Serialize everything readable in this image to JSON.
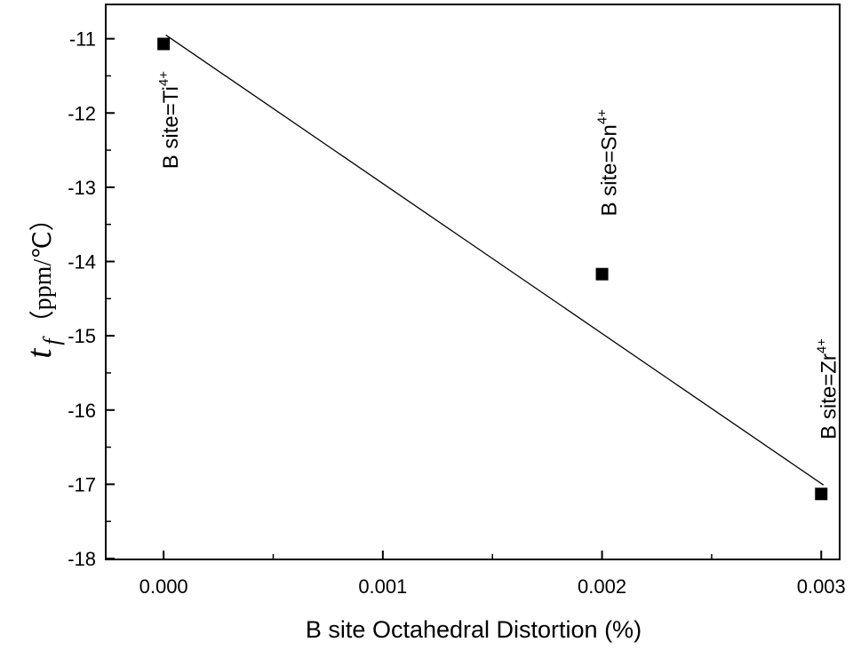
{
  "chart_data": {
    "type": "scatter",
    "xlabel": "B site Octahedral Distortion (%)",
    "ylabel": {
      "symbol": "t",
      "subscript": "f",
      "unit": "（ppm/℃）"
    },
    "xlim": [
      -0.00026,
      0.00308
    ],
    "ylim": [
      -18,
      -10.55
    ],
    "x_ticks": [
      0.0,
      0.001,
      0.002,
      0.003
    ],
    "x_tick_labels": [
      "0.000",
      "0.001",
      "0.002",
      "0.003"
    ],
    "y_ticks": [
      -11,
      -12,
      -13,
      -14,
      -15,
      -16,
      -17,
      -18
    ],
    "y_tick_labels": [
      "-11",
      "-12",
      "-13",
      "-14",
      "-15",
      "-16",
      "-17",
      "-18"
    ],
    "points": [
      {
        "x": 0.0,
        "y": -11.07,
        "label": "B site=Ti",
        "sup": "4+"
      },
      {
        "x": 0.002,
        "y": -14.17,
        "label": "B site=Sn",
        "sup": "4+"
      },
      {
        "x": 0.003,
        "y": -17.13,
        "label": "B site=Zr",
        "sup": "4+"
      }
    ],
    "fit_line": {
      "x": [
        1e-05,
        0.00301
      ],
      "y": [
        -10.95,
        -17.01
      ]
    },
    "grid": false,
    "marker": "square",
    "color": "#000000"
  }
}
